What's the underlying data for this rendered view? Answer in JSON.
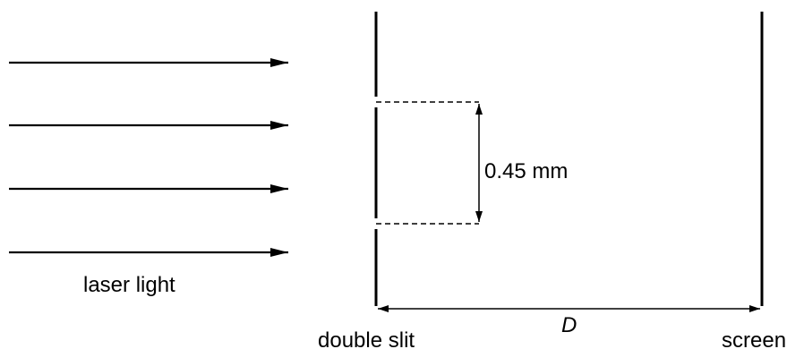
{
  "labels": {
    "laser_light": "laser light",
    "slit_separation": "0.45 mm",
    "distance": "D",
    "double_slit": "double slit",
    "screen": "screen"
  },
  "colors": {
    "ink": "#000000",
    "background": "#ffffff"
  },
  "arrows": {
    "count": 4
  }
}
